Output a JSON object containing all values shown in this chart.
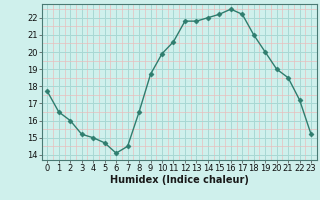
{
  "x": [
    0,
    1,
    2,
    3,
    4,
    5,
    6,
    7,
    8,
    9,
    10,
    11,
    12,
    13,
    14,
    15,
    16,
    17,
    18,
    19,
    20,
    21,
    22,
    23
  ],
  "y": [
    17.7,
    16.5,
    16.0,
    15.2,
    15.0,
    14.7,
    14.1,
    14.5,
    16.5,
    18.7,
    19.9,
    20.6,
    21.8,
    21.8,
    22.0,
    22.2,
    22.5,
    22.2,
    21.0,
    20.0,
    19.0,
    18.5,
    17.2,
    15.2
  ],
  "line_color": "#2e7d6e",
  "marker": "D",
  "marker_size": 2.5,
  "bg_color": "#cff0ec",
  "grid_color_major": "#a8d8d4",
  "grid_color_minor": "#e8bebe",
  "xlabel": "Humidex (Indice chaleur)",
  "xlim": [
    -0.5,
    23.5
  ],
  "ylim": [
    13.7,
    22.8
  ],
  "yticks": [
    14,
    15,
    16,
    17,
    18,
    19,
    20,
    21,
    22
  ],
  "xticks": [
    0,
    1,
    2,
    3,
    4,
    5,
    6,
    7,
    8,
    9,
    10,
    11,
    12,
    13,
    14,
    15,
    16,
    17,
    18,
    19,
    20,
    21,
    22,
    23
  ],
  "xlabel_fontsize": 7.0,
  "tick_fontsize": 6.0,
  "line_width": 1.0
}
